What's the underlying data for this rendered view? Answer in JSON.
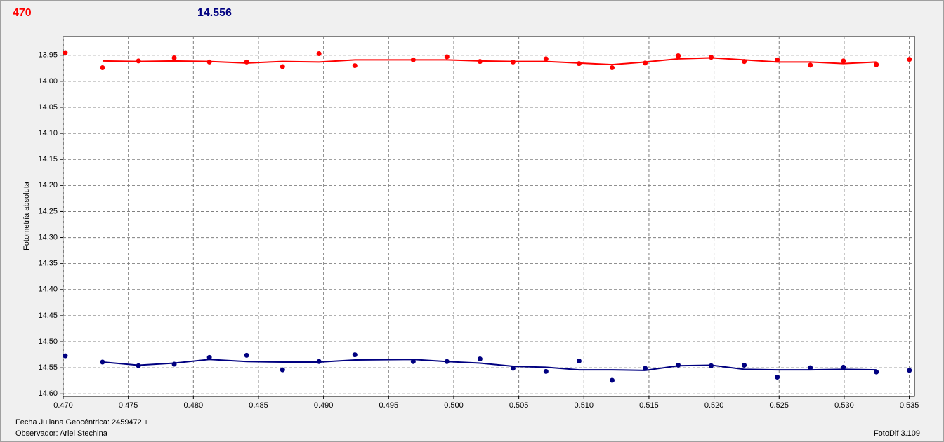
{
  "chart_data": {
    "type": "scatter",
    "header_left": "470",
    "header_right": "14.556",
    "ylabel": "Fotometría absoluta",
    "footer_left_1": "Fecha Juliana Geocéntrica: 2459472 +",
    "footer_left_2": "Observador: Ariel Stechina",
    "footer_right": "FotoDif 3.109",
    "xlim": [
      0.47,
      0.5354
    ],
    "ylim": [
      13.914,
      14.605
    ],
    "y_inverted": true,
    "grid": true,
    "xticks": [
      {
        "value": 0.47,
        "label": "0.470"
      },
      {
        "value": 0.475,
        "label": "0.475"
      },
      {
        "value": 0.48,
        "label": "0.480"
      },
      {
        "value": 0.485,
        "label": "0.485"
      },
      {
        "value": 0.49,
        "label": "0.490"
      },
      {
        "value": 0.495,
        "label": "0.495"
      },
      {
        "value": 0.5,
        "label": "0.500"
      },
      {
        "value": 0.505,
        "label": "0.505"
      },
      {
        "value": 0.51,
        "label": "0.510"
      },
      {
        "value": 0.515,
        "label": "0.515"
      },
      {
        "value": 0.52,
        "label": "0.520"
      },
      {
        "value": 0.525,
        "label": "0.525"
      },
      {
        "value": 0.53,
        "label": "0.530"
      },
      {
        "value": 0.535,
        "label": "0.535"
      }
    ],
    "yticks": [
      13.95,
      {
        "value": 14.0,
        "label": "14.00"
      },
      14.05,
      {
        "value": 14.1,
        "label": "14.10"
      },
      14.15,
      {
        "value": 14.2,
        "label": "14.20"
      },
      14.25,
      {
        "value": 14.3,
        "label": "14.30"
      },
      14.35,
      {
        "value": 14.4,
        "label": "14.40"
      },
      14.45,
      {
        "value": 14.5,
        "label": "14.50"
      },
      14.55,
      {
        "value": 14.6,
        "label": "14.60"
      }
    ],
    "series": [
      {
        "style": "markers",
        "color": "#ff0000",
        "x": [
          0.47016,
          0.47302,
          0.47578,
          0.47853,
          0.48123,
          0.48409,
          0.48685,
          0.48965,
          0.49241,
          0.49689,
          0.49948,
          0.50202,
          0.50456,
          0.50709,
          0.50963,
          0.51217,
          0.51471,
          0.51725,
          0.51978,
          0.52232,
          0.52486,
          0.5274,
          0.52994,
          0.53247,
          0.53501
        ],
        "values": [
          13.945,
          13.974,
          13.961,
          13.955,
          13.963,
          13.963,
          13.972,
          13.947,
          13.97,
          13.959,
          13.953,
          13.962,
          13.963,
          13.957,
          13.966,
          13.974,
          13.965,
          13.951,
          13.954,
          13.962,
          13.959,
          13.969,
          13.961,
          13.968,
          13.958
        ]
      },
      {
        "style": "line",
        "color": "#ff0000",
        "x": [
          0.47302,
          0.47578,
          0.47853,
          0.48123,
          0.48409,
          0.48685,
          0.48965,
          0.49241,
          0.49689,
          0.49948,
          0.50202,
          0.50456,
          0.50709,
          0.50963,
          0.51217,
          0.51471,
          0.51725,
          0.51978,
          0.52232,
          0.52486,
          0.5274,
          0.52994,
          0.53247
        ],
        "values": [
          13.961,
          13.962,
          13.961,
          13.962,
          13.965,
          13.962,
          13.963,
          13.959,
          13.959,
          13.959,
          13.961,
          13.962,
          13.962,
          13.965,
          13.968,
          13.963,
          13.957,
          13.955,
          13.959,
          13.963,
          13.963,
          13.966,
          13.963
        ]
      },
      {
        "style": "markers",
        "color": "#000080",
        "x": [
          0.47016,
          0.47302,
          0.47578,
          0.47853,
          0.48123,
          0.48409,
          0.48685,
          0.48965,
          0.49241,
          0.49689,
          0.49948,
          0.50202,
          0.50456,
          0.50709,
          0.50963,
          0.51217,
          0.51471,
          0.51725,
          0.51978,
          0.52232,
          0.52486,
          0.5274,
          0.52994,
          0.53247,
          0.53501
        ],
        "values": [
          14.527,
          14.539,
          14.546,
          14.543,
          14.53,
          14.526,
          14.554,
          14.538,
          14.525,
          14.538,
          14.538,
          14.533,
          14.551,
          14.557,
          14.537,
          14.574,
          14.551,
          14.545,
          14.546,
          14.545,
          14.568,
          14.55,
          14.549,
          14.558,
          14.555
        ]
      },
      {
        "style": "line",
        "color": "#000080",
        "x": [
          0.47302,
          0.47578,
          0.47853,
          0.48123,
          0.48409,
          0.48685,
          0.48965,
          0.49241,
          0.49689,
          0.49948,
          0.50202,
          0.50456,
          0.50709,
          0.50963,
          0.51217,
          0.51471,
          0.51725,
          0.51978,
          0.52232,
          0.52486,
          0.5274,
          0.52994,
          0.53247
        ],
        "values": [
          14.539,
          14.545,
          14.541,
          14.534,
          14.538,
          14.539,
          14.539,
          14.535,
          14.534,
          14.538,
          14.541,
          14.547,
          14.549,
          14.554,
          14.554,
          14.555,
          14.546,
          14.545,
          14.553,
          14.554,
          14.554,
          14.553,
          14.554
        ]
      }
    ]
  }
}
